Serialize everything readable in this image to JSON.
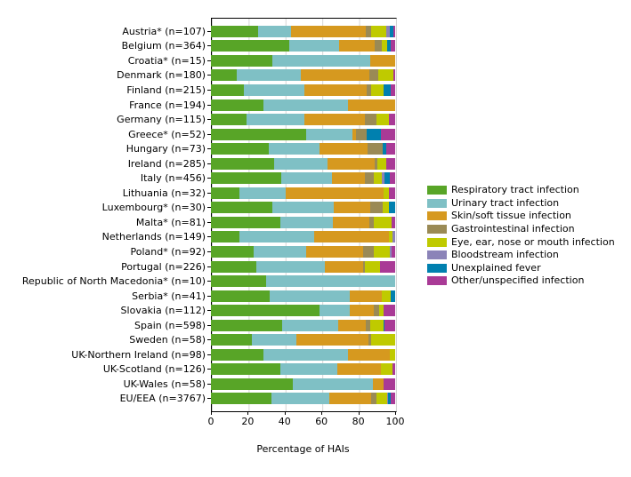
{
  "chart_data": {
    "type": "bar",
    "orientation": "horizontal",
    "stacked": true,
    "unit": "percent",
    "xlabel": "Percentage of HAIs",
    "xlim": [
      0,
      100
    ],
    "xticks": [
      0,
      20,
      40,
      60,
      80,
      100
    ],
    "grid": true,
    "legend_position": "right",
    "categories": [
      "Austria* (n=107)",
      "Belgium (n=364)",
      "Croatia* (n=15)",
      "Denmark (n=180)",
      "Finland (n=215)",
      "France (n=194)",
      "Germany (n=115)",
      "Greece* (n=52)",
      "Hungary (n=73)",
      "Ireland (n=285)",
      "Italy (n=456)",
      "Lithuania (n=32)",
      "Luxembourg* (n=30)",
      "Malta* (n=81)",
      "Netherlands (n=149)",
      "Poland* (n=92)",
      "Portugal (n=226)",
      "Republic of North Macedonia* (n=10)",
      "Serbia* (n=41)",
      "Slovakia (n=112)",
      "Spain (n=598)",
      "Sweden (n=58)",
      "UK-Northern Ireland (n=98)",
      "UK-Scotland (n=126)",
      "UK-Wales (n=58)",
      "EU/EEA (n=3767)"
    ],
    "series": [
      {
        "name": "Respiratory tract infection",
        "color": "#58a527",
        "values": [
          25.5,
          42.5,
          33.3,
          14.0,
          17.9,
          28.6,
          19.5,
          51.9,
          31.5,
          34.5,
          38.4,
          15.6,
          33.3,
          37.9,
          15.3,
          23.0,
          24.8,
          30.0,
          31.7,
          58.8,
          38.8,
          22.4,
          28.6,
          37.8,
          44.3,
          32.7
        ]
      },
      {
        "name": "Urinary tract infection",
        "color": "#7fc0c5",
        "values": [
          18.0,
          27.0,
          53.3,
          35.0,
          32.8,
          45.8,
          31.4,
          25.0,
          27.4,
          28.6,
          27.4,
          25.0,
          33.3,
          28.1,
          40.9,
          28.6,
          36.9,
          70.0,
          43.9,
          16.7,
          30.2,
          24.1,
          45.9,
          30.9,
          43.4,
          31.7
        ]
      },
      {
        "name": "Skin/soft tissue infection",
        "color": "#d6991f",
        "values": [
          40.5,
          19.2,
          13.4,
          37.2,
          34.0,
          25.6,
          32.8,
          1.9,
          26.0,
          25.6,
          17.7,
          53.1,
          20.0,
          20.0,
          40.2,
          30.9,
          20.8,
          0,
          17.1,
          13.1,
          15.1,
          39.2,
          22.4,
          23.5,
          6.2,
          22.6
        ]
      },
      {
        "name": "Gastrointestinal infection",
        "color": "#9a8a55",
        "values": [
          3.0,
          3.9,
          0,
          4.4,
          2.5,
          0,
          6.1,
          5.8,
          8.2,
          1.6,
          4.9,
          0,
          6.7,
          2.5,
          0,
          5.8,
          0.9,
          0,
          0,
          2.5,
          2.5,
          1.4,
          0,
          0,
          0,
          2.9
        ]
      },
      {
        "name": "Eye, ear, nose or mouth infection",
        "color": "#bfca00",
        "values": [
          8.0,
          3.0,
          0,
          8.4,
          6.4,
          0,
          6.7,
          0,
          0,
          4.8,
          4.6,
          3.1,
          3.4,
          9.5,
          2.0,
          9.0,
          8.2,
          0,
          4.9,
          2.8,
          6.9,
          12.9,
          3.1,
          6.6,
          0,
          5.8
        ]
      },
      {
        "name": "Bloodstream infection",
        "color": "#8b83b8",
        "values": [
          2.0,
          0,
          0,
          0,
          0,
          0,
          0,
          0,
          0,
          0,
          1.2,
          0,
          0,
          0,
          1.6,
          1.0,
          0,
          0,
          0,
          0,
          0,
          0,
          0,
          0,
          0,
          0.5
        ]
      },
      {
        "name": "Unexplained fever",
        "color": "#0080af",
        "values": [
          2.0,
          1.9,
          0,
          0,
          3.9,
          0,
          0,
          7.7,
          2.1,
          0,
          2.9,
          0,
          3.3,
          0,
          0,
          0,
          0,
          0,
          2.4,
          0,
          0.5,
          0,
          0,
          0,
          0,
          1.2
        ]
      },
      {
        "name": "Other/unspecified infection",
        "color": "#a93a96",
        "values": [
          1.0,
          2.5,
          0,
          1.0,
          2.5,
          0,
          3.5,
          7.7,
          4.8,
          4.9,
          2.9,
          3.1,
          0,
          2.0,
          0,
          1.7,
          8.4,
          0,
          0,
          6.1,
          6.0,
          0,
          0,
          1.2,
          6.1,
          2.6
        ]
      }
    ]
  }
}
